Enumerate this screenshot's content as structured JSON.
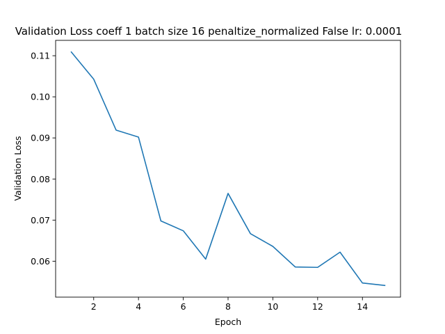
{
  "chart_data": {
    "type": "line",
    "title": "Validation Loss coeff 1 batch size 16 penaltize_normalized False lr: 0.0001",
    "xlabel": "Epoch",
    "ylabel": "Validation Loss",
    "x": [
      1,
      2,
      3,
      4,
      5,
      6,
      7,
      8,
      9,
      10,
      11,
      12,
      13,
      14,
      15
    ],
    "series": [
      {
        "values": [
          0.1109,
          0.1043,
          0.0919,
          0.0902,
          0.0698,
          0.0674,
          0.0605,
          0.0765,
          0.0667,
          0.0636,
          0.0586,
          0.0585,
          0.0622,
          0.0547,
          0.0541
        ],
        "color": "#1f77b4"
      }
    ],
    "xlim": [
      0.3,
      15.7
    ],
    "ylim": [
      0.05126,
      0.11374
    ],
    "xticks": [
      2,
      4,
      6,
      8,
      10,
      12,
      14
    ],
    "yticks": [
      0.06,
      0.07,
      0.08,
      0.09,
      0.1,
      0.11
    ],
    "ytick_labels": [
      "0.06",
      "0.07",
      "0.08",
      "0.09",
      "0.10",
      "0.11"
    ],
    "grid": false,
    "legend": "none"
  }
}
